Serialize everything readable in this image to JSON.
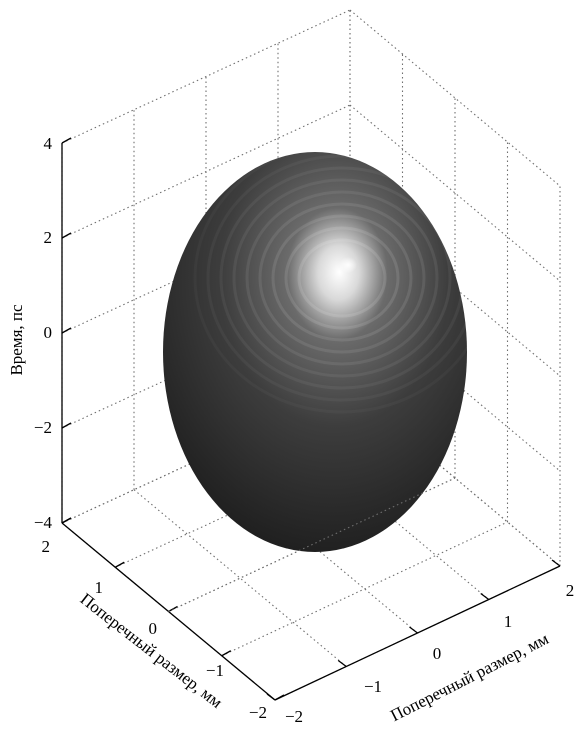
{
  "chart_data": {
    "type": "surface3d",
    "shape": "ellipsoid",
    "colors": {
      "surface_dark": "#1a1a1a",
      "surface_mid": "#3d3d3d",
      "highlight": "#ffffff",
      "grid": "#6f6f6f",
      "axis": "#000000"
    },
    "zlabel": "Время, пс",
    "xlabel": "Поперечный размер, мм",
    "ylabel": "Поперечный размер, мм",
    "xlim": [
      -2,
      2
    ],
    "ylim": [
      -2,
      2
    ],
    "zlim": [
      -4,
      4
    ],
    "z_ticks": [
      "4",
      "2",
      "0",
      "−2",
      "−4"
    ],
    "left_floor_ticks": [
      "2",
      "1",
      "0",
      "−1",
      "−2"
    ],
    "right_floor_ticks": [
      "−2",
      "−1",
      "0",
      "1",
      "2"
    ],
    "ellipsoid_semi_axes": {
      "x": 2,
      "y": 2,
      "z": 4
    },
    "grid": true
  }
}
